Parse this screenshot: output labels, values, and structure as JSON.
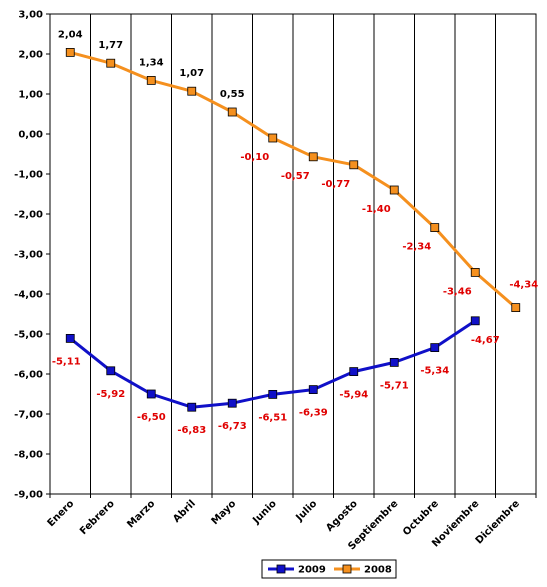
{
  "chart_data": {
    "type": "line",
    "title": "",
    "xlabel": "",
    "ylabel": "",
    "categories": [
      "Enero",
      "Febrero",
      "Marzo",
      "Abril",
      "Mayo",
      "Junio",
      "Julio",
      "Agosto",
      "Septiembre",
      "Octubre",
      "Noviembre",
      "Diciembre"
    ],
    "ylim": [
      -9,
      3
    ],
    "yticks": [
      3,
      2,
      1,
      0,
      -1,
      -2,
      -3,
      -4,
      -5,
      -6,
      -7,
      -8,
      -9
    ],
    "ytick_labels": [
      "3,00",
      "2,00",
      "1,00",
      "0,00",
      "-1,00",
      "-2,00",
      "-3,00",
      "-4,00",
      "-5,00",
      "-6,00",
      "-7,00",
      "-8,00",
      "-9,00"
    ],
    "grid": "vertical",
    "legend_position": "bottom",
    "series": [
      {
        "name": "2009",
        "color": "#1010c8",
        "label_color": "#e00000",
        "values": [
          -5.11,
          -5.92,
          -6.5,
          -6.83,
          -6.73,
          -6.51,
          -6.39,
          -5.94,
          -5.71,
          -5.34,
          -4.67,
          null
        ],
        "labels": [
          "-5,11",
          "-5,92",
          "-6,50",
          "-6,83",
          "-6,73",
          "-6,51",
          "-6,39",
          "-5,94",
          "-5,71",
          "-5,34",
          "-4,67",
          ""
        ]
      },
      {
        "name": "2008",
        "color": "#f5901e",
        "label_color_positive": "#000000",
        "label_color_negative": "#e00000",
        "values": [
          2.04,
          1.77,
          1.34,
          1.07,
          0.55,
          -0.1,
          -0.57,
          -0.77,
          -1.4,
          -2.34,
          -3.46,
          -4.34
        ],
        "labels": [
          "2,04",
          "1,77",
          "1,34",
          "1,07",
          "0,55",
          "-0,10",
          "-0,57",
          "-0,77",
          "-1,40",
          "-2,34",
          "-3,46",
          "-4,34"
        ]
      }
    ]
  }
}
